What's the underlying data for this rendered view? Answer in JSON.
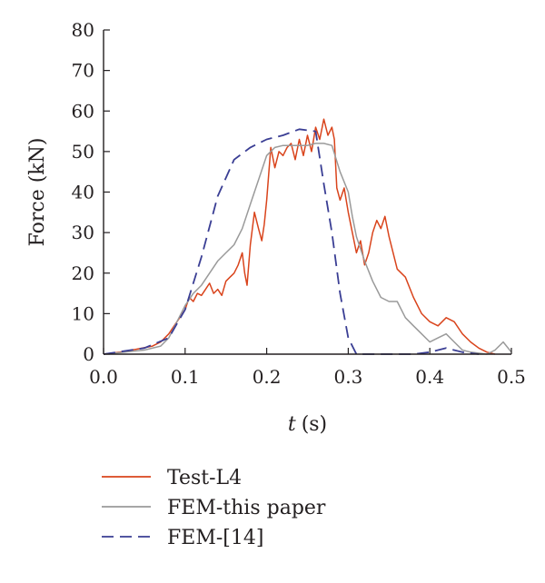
{
  "chart_data": {
    "type": "line",
    "title": "",
    "xlabel_var": "t",
    "xlabel_unit": "(s)",
    "ylabel": "Force (kN)",
    "xlim": [
      0,
      0.5
    ],
    "ylim": [
      0,
      80
    ],
    "xticks": [
      "0.0",
      "0.1",
      "0.2",
      "0.3",
      "0.4",
      "0.5"
    ],
    "yticks": [
      "0",
      "10",
      "20",
      "30",
      "40",
      "50",
      "60",
      "70",
      "80"
    ],
    "grid": false,
    "legend_position": "bottom-center",
    "series": [
      {
        "name": "Test-L4",
        "color": "#d9441c",
        "dash": "solid",
        "points": [
          [
            0,
            0
          ],
          [
            0.02,
            0.5
          ],
          [
            0.04,
            1.2
          ],
          [
            0.06,
            2
          ],
          [
            0.07,
            3
          ],
          [
            0.08,
            5
          ],
          [
            0.09,
            8
          ],
          [
            0.1,
            11
          ],
          [
            0.105,
            14
          ],
          [
            0.11,
            13
          ],
          [
            0.115,
            15
          ],
          [
            0.12,
            14.5
          ],
          [
            0.125,
            16
          ],
          [
            0.13,
            17.5
          ],
          [
            0.135,
            15
          ],
          [
            0.14,
            16
          ],
          [
            0.145,
            14.5
          ],
          [
            0.15,
            18
          ],
          [
            0.155,
            19
          ],
          [
            0.16,
            20
          ],
          [
            0.165,
            22
          ],
          [
            0.17,
            25
          ],
          [
            0.173,
            20
          ],
          [
            0.176,
            17
          ],
          [
            0.18,
            27
          ],
          [
            0.185,
            35
          ],
          [
            0.19,
            31
          ],
          [
            0.194,
            28
          ],
          [
            0.197,
            32
          ],
          [
            0.2,
            38
          ],
          [
            0.205,
            51
          ],
          [
            0.21,
            46
          ],
          [
            0.215,
            50
          ],
          [
            0.22,
            49
          ],
          [
            0.225,
            51
          ],
          [
            0.23,
            52
          ],
          [
            0.235,
            48
          ],
          [
            0.24,
            53
          ],
          [
            0.245,
            49
          ],
          [
            0.25,
            54
          ],
          [
            0.255,
            50
          ],
          [
            0.26,
            56
          ],
          [
            0.265,
            53
          ],
          [
            0.27,
            58
          ],
          [
            0.275,
            54
          ],
          [
            0.28,
            56
          ],
          [
            0.283,
            53
          ],
          [
            0.286,
            41
          ],
          [
            0.29,
            38
          ],
          [
            0.295,
            41
          ],
          [
            0.3,
            35
          ],
          [
            0.305,
            30
          ],
          [
            0.31,
            25
          ],
          [
            0.315,
            28
          ],
          [
            0.32,
            22
          ],
          [
            0.325,
            25
          ],
          [
            0.33,
            30
          ],
          [
            0.335,
            33
          ],
          [
            0.34,
            31
          ],
          [
            0.345,
            34
          ],
          [
            0.35,
            29
          ],
          [
            0.355,
            25
          ],
          [
            0.36,
            21
          ],
          [
            0.37,
            19
          ],
          [
            0.38,
            14
          ],
          [
            0.39,
            10
          ],
          [
            0.4,
            8
          ],
          [
            0.41,
            7
          ],
          [
            0.42,
            9
          ],
          [
            0.43,
            8
          ],
          [
            0.44,
            5
          ],
          [
            0.45,
            3
          ],
          [
            0.46,
            1.5
          ],
          [
            0.47,
            0.5
          ],
          [
            0.48,
            0
          ]
        ]
      },
      {
        "name": "FEM-this paper",
        "color": "#9a9a9a",
        "dash": "solid",
        "points": [
          [
            0,
            0
          ],
          [
            0.05,
            1
          ],
          [
            0.07,
            2
          ],
          [
            0.08,
            4
          ],
          [
            0.09,
            8
          ],
          [
            0.1,
            12
          ],
          [
            0.11,
            15
          ],
          [
            0.12,
            17
          ],
          [
            0.13,
            20
          ],
          [
            0.14,
            23
          ],
          [
            0.15,
            25
          ],
          [
            0.16,
            27
          ],
          [
            0.17,
            31
          ],
          [
            0.18,
            37
          ],
          [
            0.19,
            43
          ],
          [
            0.2,
            49
          ],
          [
            0.21,
            51
          ],
          [
            0.22,
            51.5
          ],
          [
            0.23,
            51.5
          ],
          [
            0.24,
            51.5
          ],
          [
            0.25,
            51.5
          ],
          [
            0.26,
            52
          ],
          [
            0.27,
            52
          ],
          [
            0.28,
            51.5
          ],
          [
            0.29,
            45
          ],
          [
            0.3,
            40
          ],
          [
            0.305,
            34
          ],
          [
            0.31,
            29
          ],
          [
            0.32,
            23
          ],
          [
            0.33,
            18
          ],
          [
            0.34,
            14
          ],
          [
            0.35,
            13
          ],
          [
            0.36,
            13
          ],
          [
            0.37,
            9
          ],
          [
            0.38,
            7
          ],
          [
            0.39,
            5
          ],
          [
            0.4,
            3
          ],
          [
            0.41,
            4
          ],
          [
            0.42,
            5
          ],
          [
            0.43,
            3
          ],
          [
            0.44,
            1
          ],
          [
            0.45,
            0.5
          ],
          [
            0.47,
            0
          ],
          [
            0.48,
            1
          ],
          [
            0.49,
            3
          ],
          [
            0.5,
            0.5
          ]
        ]
      },
      {
        "name": "FEM-[14]",
        "color": "#3a3e94",
        "dash": "dashed",
        "points": [
          [
            0,
            0
          ],
          [
            0.05,
            1.5
          ],
          [
            0.08,
            4
          ],
          [
            0.1,
            11
          ],
          [
            0.12,
            24
          ],
          [
            0.14,
            39
          ],
          [
            0.16,
            48
          ],
          [
            0.18,
            51
          ],
          [
            0.2,
            53
          ],
          [
            0.22,
            54
          ],
          [
            0.24,
            55.5
          ],
          [
            0.26,
            55
          ],
          [
            0.27,
            42
          ],
          [
            0.28,
            30
          ],
          [
            0.29,
            15
          ],
          [
            0.3,
            4
          ],
          [
            0.31,
            0
          ],
          [
            0.35,
            0
          ],
          [
            0.38,
            0
          ],
          [
            0.4,
            0.5
          ],
          [
            0.42,
            1.5
          ],
          [
            0.44,
            0.5
          ],
          [
            0.46,
            0
          ]
        ]
      }
    ]
  }
}
